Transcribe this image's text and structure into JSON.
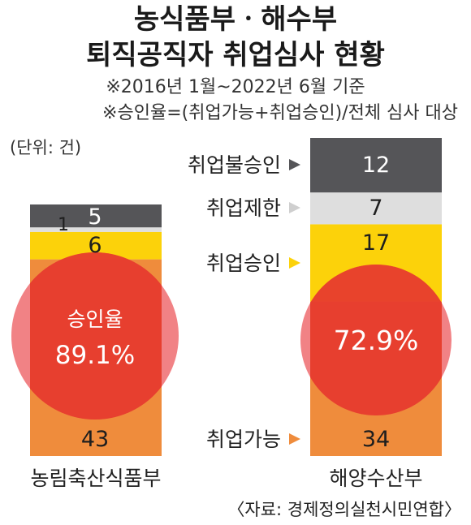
{
  "title_line1": "농식품부ㆍ해수부",
  "title_line2": "퇴직공직자 취업심사 현황",
  "note_period": "※2016년 1월~2022년 6월 기준",
  "note_formula": "※승인율=(취업가능+취업승인)/전체 심사 대상",
  "unit": "(단위: 건)",
  "source": "〈자료: 경제정의실천시민연합〉",
  "colors": {
    "취업가능": "#ef8c3c",
    "취업승인": "#fcd20a",
    "취업제한": "#dedede",
    "취업불승인": "#555558",
    "rate_circle": "#e8353a"
  },
  "chart_data": {
    "type": "bar",
    "stacked": true,
    "categories": [
      "농림축산식품부",
      "해양수산부"
    ],
    "series": [
      {
        "name": "취업가능",
        "values": [
          43,
          34
        ]
      },
      {
        "name": "취업승인",
        "values": [
          6,
          17
        ]
      },
      {
        "name": "취업제한",
        "values": [
          1,
          7
        ]
      },
      {
        "name": "취업불승인",
        "values": [
          5,
          12
        ]
      }
    ],
    "approval_rate": [
      {
        "category": "농림축산식품부",
        "label": "승인율",
        "value": "89.1%"
      },
      {
        "category": "해양수산부",
        "label": "",
        "value": "72.9%"
      }
    ],
    "value_labels": [
      [
        "43",
        "6",
        "1",
        "5"
      ],
      [
        "34",
        "17",
        "7",
        "12"
      ]
    ],
    "legend_labels": [
      "취업불승인",
      "취업제한",
      "취업승인",
      "취업가능"
    ]
  }
}
